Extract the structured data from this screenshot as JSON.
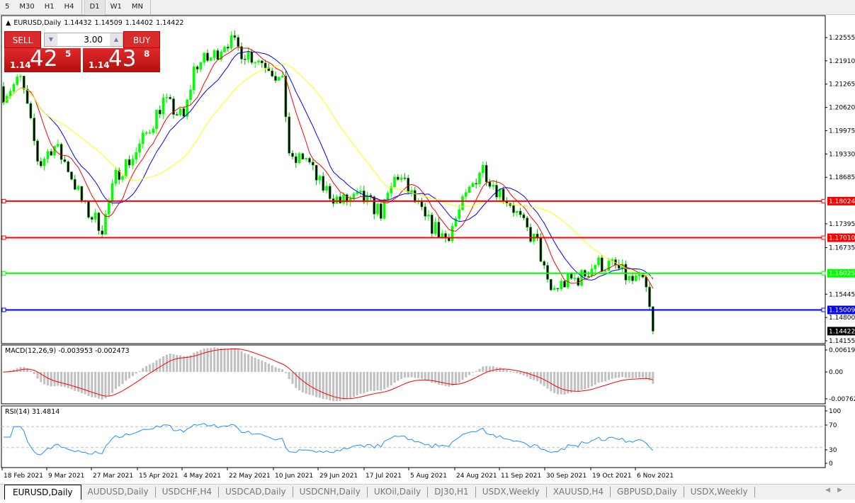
{
  "toolbar": {
    "timeframes": [
      "5",
      "M30",
      "H1",
      "H4",
      "D1",
      "W1",
      "MN"
    ],
    "active": "D1"
  },
  "chart": {
    "symbol_header": "EURUSD,Daily",
    "ohlc": [
      "1.14432",
      "1.14509",
      "1.14402",
      "1.14422"
    ],
    "sell_label": "SELL",
    "buy_label": "BUY",
    "lot": "3.00",
    "sell_price": {
      "prefix": "1.14",
      "big": "42",
      "small": "5"
    },
    "buy_price": {
      "prefix": "1.14",
      "big": "43",
      "small": "8"
    },
    "price_axis": [
      "1.22555",
      "1.21910",
      "1.21265",
      "1.20620",
      "1.19975",
      "1.19330",
      "1.18685",
      "1.17395",
      "1.16735",
      "1.15445",
      "1.14800",
      "1.14155"
    ],
    "current_price": "1.14422",
    "hlines": [
      {
        "price": "1.18024",
        "color": "#ff0000"
      },
      {
        "price": "1.17010",
        "color": "#ff0000"
      },
      {
        "price": "1.16025",
        "color": "#00ff00"
      },
      {
        "price": "1.15009",
        "color": "#0000ff"
      }
    ],
    "macd": {
      "label": "MACD(12,26,9) -0.003953 -0.002473",
      "axis": [
        "0.006193",
        "0.00",
        "-0.007621"
      ]
    },
    "rsi": {
      "label": "RSI(14) 31.4814",
      "axis": [
        "100",
        "70",
        "30",
        "0"
      ]
    },
    "date_axis": [
      "18 Feb 2021",
      "9 Mar 2021",
      "27 Mar 2021",
      "15 Apr 2021",
      "4 May 2021",
      "22 May 2021",
      "10 Jun 2021",
      "29 Jun 2021",
      "17 Jul 2021",
      "5 Aug 2021",
      "24 Aug 2021",
      "11 Sep 2021",
      "30 Sep 2021",
      "19 Oct 2021",
      "6 Nov 2021"
    ],
    "colors": {
      "bull": "#00ff00",
      "bear": "#00aa00",
      "ma_fast": "#ff0000",
      "ma_mid": "#0000ff",
      "ma_slow": "#ffff00"
    }
  },
  "chart_data": {
    "type": "candlestick",
    "approx_closes": [
      [
        "18 Feb 2021",
        1.21
      ],
      [
        "9 Mar 2021",
        1.19
      ],
      [
        "27 Mar 2021",
        1.176
      ],
      [
        "15 Apr 2021",
        1.196
      ],
      [
        "4 May 2021",
        1.203
      ],
      [
        "22 May 2021",
        1.222
      ],
      [
        "10 Jun 2021",
        1.212
      ],
      [
        "29 Jun 2021",
        1.188
      ],
      [
        "17 Jul 2021",
        1.18
      ],
      [
        "5 Aug 2021",
        1.183
      ],
      [
        "24 Aug 2021",
        1.175
      ],
      [
        "11 Sep 2021",
        1.181
      ],
      [
        "30 Sep 2021",
        1.158
      ],
      [
        "19 Oct 2021",
        1.163
      ],
      [
        "6 Nov 2021",
        1.156
      ],
      [
        "11 Nov 2021",
        1.1442
      ]
    ],
    "ylim": [
      1.14155,
      1.22555
    ]
  },
  "tabs": [
    "EURUSD,Daily",
    "AUDUSD,Daily",
    "USDCHF,H4",
    "USDCAD,Daily",
    "USDCNH,Daily",
    "UKOil,Daily",
    "DJ30,H1",
    "USDX,Weekly",
    "XAUUSD,H4",
    "GBPUSD,Daily",
    "USDX,Weekly"
  ]
}
